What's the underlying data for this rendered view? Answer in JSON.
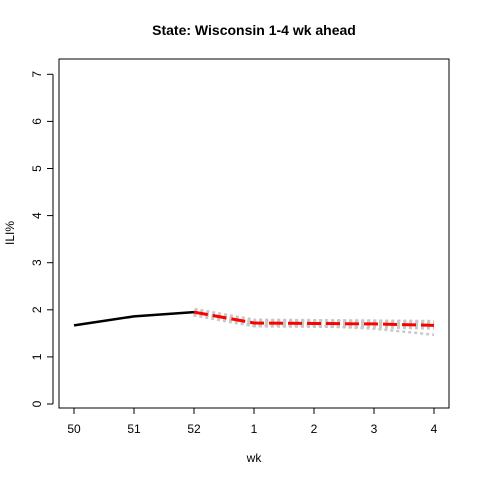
{
  "chart_data": {
    "type": "line",
    "title": "State: Wisconsin 1-4 wk ahead",
    "xlabel": "wk",
    "ylabel": "ILI%",
    "categories": [
      "50",
      "51",
      "52",
      "1",
      "2",
      "3",
      "4"
    ],
    "ylim": [
      0,
      7
    ],
    "yticks": [
      "0",
      "1",
      "2",
      "3",
      "4",
      "5",
      "6",
      "7"
    ],
    "grid": false,
    "colors": {
      "observed": "#000000",
      "forecast": "#ff0000",
      "interval": "#c8c8c8",
      "forecast_dash": "#c8c8c8"
    },
    "series": [
      {
        "key": "observed",
        "x": [
          0,
          1,
          2
        ],
        "values": [
          1.67,
          1.86,
          1.95
        ]
      },
      {
        "key": "forecast",
        "x": [
          2,
          3,
          4,
          5,
          6
        ],
        "values": [
          1.95,
          1.72,
          1.71,
          1.7,
          1.67
        ]
      },
      {
        "key": "upper",
        "x": [
          2,
          3,
          4,
          5,
          6
        ],
        "values": [
          1.95,
          1.77,
          1.77,
          1.77,
          1.76
        ]
      },
      {
        "key": "lower",
        "x": [
          2,
          3,
          4,
          5,
          6
        ],
        "values": [
          1.95,
          1.66,
          1.66,
          1.6,
          1.47
        ]
      }
    ]
  }
}
